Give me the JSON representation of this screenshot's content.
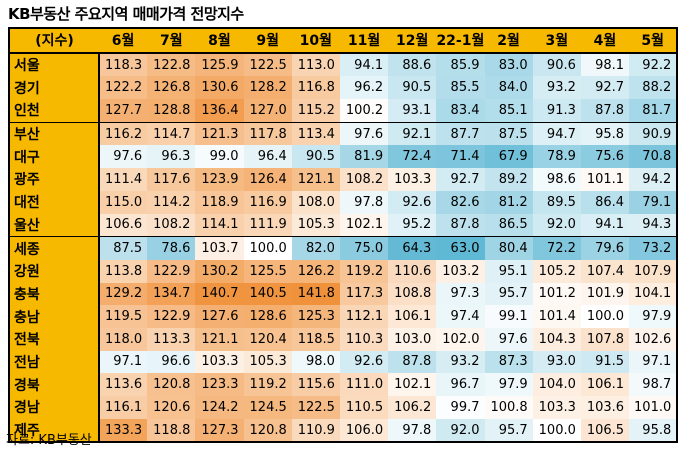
{
  "title": "KB부동산 주요지역 매매가격 전망지수",
  "footer": "자료: KB부동산",
  "header": {
    "corner": "(지수)",
    "months": [
      "6월",
      "7월",
      "8월",
      "9월",
      "10월",
      "11월",
      "12월",
      "22-1월",
      "2월",
      "3월",
      "4월",
      "5월"
    ]
  },
  "rows": [
    {
      "region": "서울",
      "values": [
        "118.3",
        "122.8",
        "125.9",
        "122.5",
        "113.0",
        "94.1",
        "88.6",
        "85.9",
        "83.0",
        "90.6",
        "98.1",
        "92.2"
      ]
    },
    {
      "region": "경기",
      "values": [
        "122.2",
        "126.8",
        "130.6",
        "128.2",
        "116.8",
        "96.2",
        "90.5",
        "85.5",
        "84.0",
        "93.2",
        "92.7",
        "88.2"
      ]
    },
    {
      "region": "인천",
      "values": [
        "127.7",
        "128.8",
        "136.4",
        "127.0",
        "115.2",
        "100.2",
        "93.1",
        "83.4",
        "85.1",
        "91.3",
        "87.8",
        "81.7"
      ]
    },
    {
      "region": "부산",
      "values": [
        "116.2",
        "114.7",
        "121.3",
        "117.8",
        "113.4",
        "97.6",
        "92.1",
        "87.7",
        "87.5",
        "94.7",
        "95.8",
        "90.9"
      ]
    },
    {
      "region": "대구",
      "values": [
        "97.6",
        "96.3",
        "99.0",
        "96.4",
        "90.5",
        "81.9",
        "72.4",
        "71.4",
        "67.9",
        "78.9",
        "75.6",
        "70.8"
      ]
    },
    {
      "region": "광주",
      "values": [
        "111.4",
        "117.6",
        "123.9",
        "126.4",
        "121.1",
        "108.2",
        "103.3",
        "92.7",
        "89.2",
        "98.6",
        "101.1",
        "94.2"
      ]
    },
    {
      "region": "대전",
      "values": [
        "115.0",
        "114.2",
        "118.9",
        "116.9",
        "108.0",
        "97.8",
        "92.6",
        "82.6",
        "81.2",
        "89.5",
        "86.4",
        "79.1"
      ]
    },
    {
      "region": "울산",
      "values": [
        "106.6",
        "108.2",
        "114.1",
        "111.9",
        "105.3",
        "102.1",
        "95.2",
        "87.8",
        "86.5",
        "92.0",
        "94.1",
        "94.3"
      ]
    },
    {
      "region": "세종",
      "values": [
        "87.5",
        "78.6",
        "103.7",
        "100.0",
        "82.0",
        "75.0",
        "64.3",
        "63.0",
        "80.4",
        "72.2",
        "79.6",
        "73.2"
      ]
    },
    {
      "region": "강원",
      "values": [
        "113.8",
        "122.9",
        "130.2",
        "125.5",
        "126.2",
        "119.2",
        "110.6",
        "103.2",
        "95.1",
        "105.2",
        "107.4",
        "107.9"
      ]
    },
    {
      "region": "충북",
      "values": [
        "129.2",
        "134.7",
        "140.7",
        "140.5",
        "141.8",
        "117.3",
        "108.8",
        "97.3",
        "95.7",
        "101.2",
        "101.9",
        "104.1"
      ]
    },
    {
      "region": "충남",
      "values": [
        "119.5",
        "122.9",
        "127.6",
        "128.6",
        "125.3",
        "112.1",
        "106.1",
        "97.4",
        "99.1",
        "101.4",
        "100.0",
        "97.9"
      ]
    },
    {
      "region": "전북",
      "values": [
        "118.0",
        "113.3",
        "121.1",
        "120.4",
        "118.5",
        "110.3",
        "103.0",
        "102.0",
        "97.6",
        "104.3",
        "107.8",
        "102.6"
      ]
    },
    {
      "region": "전남",
      "values": [
        "97.1",
        "96.6",
        "103.3",
        "105.3",
        "98.0",
        "92.6",
        "87.8",
        "93.2",
        "87.3",
        "93.0",
        "91.5",
        "97.1"
      ]
    },
    {
      "region": "경북",
      "values": [
        "113.6",
        "120.8",
        "123.3",
        "119.2",
        "115.6",
        "111.0",
        "102.1",
        "96.7",
        "97.9",
        "104.0",
        "106.1",
        "98.7"
      ]
    },
    {
      "region": "경남",
      "values": [
        "116.1",
        "120.6",
        "124.2",
        "124.5",
        "122.5",
        "110.5",
        "106.2",
        "99.7",
        "100.8",
        "103.3",
        "103.6",
        "101.0"
      ]
    },
    {
      "region": "제주",
      "values": [
        "133.3",
        "118.8",
        "127.3",
        "120.8",
        "110.9",
        "106.0",
        "97.8",
        "92.0",
        "95.7",
        "100.0",
        "106.5",
        "95.8"
      ]
    }
  ],
  "group_breaks_after": [
    2,
    7
  ],
  "colors": {
    "header_bg": "#f7b800",
    "scale_low": "#5fb8d4",
    "scale_mid": "#ffffff",
    "scale_high": "#f0913a"
  }
}
